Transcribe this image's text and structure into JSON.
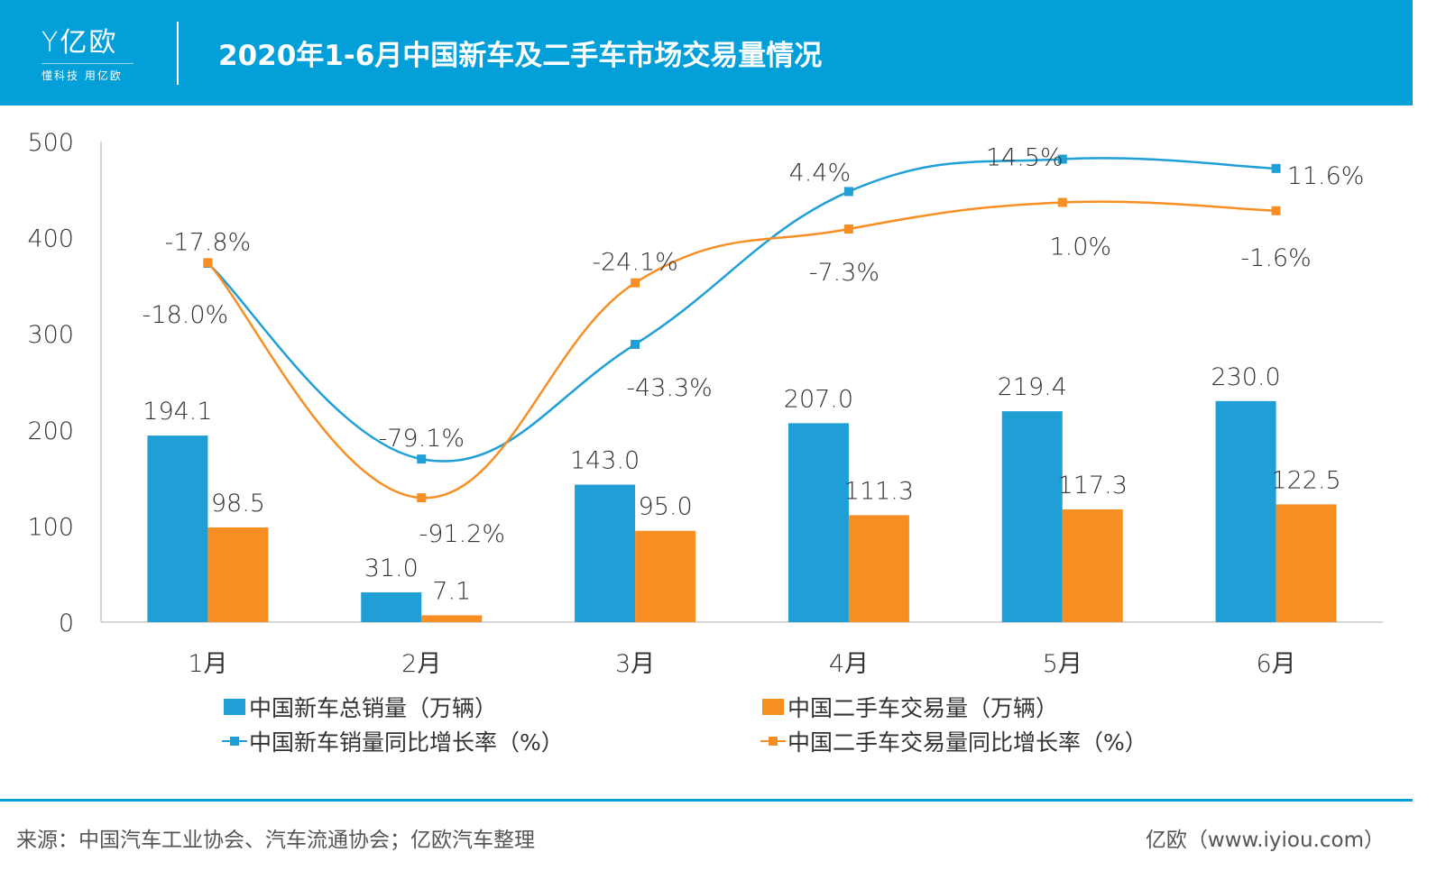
{
  "header": {
    "logo_text": "亿欧",
    "logo_slogan": "懂科技 用亿欧",
    "title": "2020年1-6月中国新车及二手车市场交易量情况"
  },
  "colors": {
    "header": "#029fd8",
    "new": "#1f9fd5",
    "used": "#f78f25"
  },
  "chart_data": {
    "type": "bar+line",
    "categories": [
      "1月",
      "2月",
      "3月",
      "4月",
      "5月",
      "6月"
    ],
    "ylim": [
      0,
      500
    ],
    "yticks": [
      "0",
      "100",
      "200",
      "300",
      "400",
      "500"
    ],
    "secondary_ylim": [
      -130,
      20
    ],
    "grid": false,
    "legend_position": "bottom",
    "series": [
      {
        "name": "中国新车总销量（万辆）",
        "kind": "bar",
        "values": [
          194.1,
          31.0,
          143.0,
          207.0,
          219.4,
          230.0
        ],
        "labels": [
          "194.1",
          "31.0",
          "143.0",
          "207.0",
          "219.4",
          "230.0"
        ]
      },
      {
        "name": "中国二手车交易量（万辆）",
        "kind": "bar",
        "values": [
          98.5,
          7.1,
          95.0,
          111.3,
          117.3,
          122.5
        ],
        "labels": [
          "98.5",
          "7.1",
          "95.0",
          "111.3",
          "117.3",
          "122.5"
        ]
      },
      {
        "name": "中国新车销量同比增长率（%）",
        "kind": "line",
        "axis": "secondary",
        "values": [
          -18.0,
          -79.1,
          -43.3,
          4.4,
          14.5,
          11.6
        ],
        "labels": [
          "-18.0%",
          "-79.1%",
          "-43.3%",
          "4.4%",
          "14.5%",
          "11.6%"
        ]
      },
      {
        "name": "中国二手车交易量同比增长率（%）",
        "kind": "line",
        "axis": "secondary",
        "values": [
          -17.8,
          -91.2,
          -24.1,
          -7.3,
          1.0,
          -1.6
        ],
        "labels": [
          "-17.8%",
          "-91.2%",
          "-24.1%",
          "-7.3%",
          "1.0%",
          "-1.6%"
        ]
      }
    ]
  },
  "footer": {
    "source": "来源：中国汽车工业协会、汽车流通协会；亿欧汽车整理",
    "credit": "亿欧（www.iyiou.com）"
  }
}
